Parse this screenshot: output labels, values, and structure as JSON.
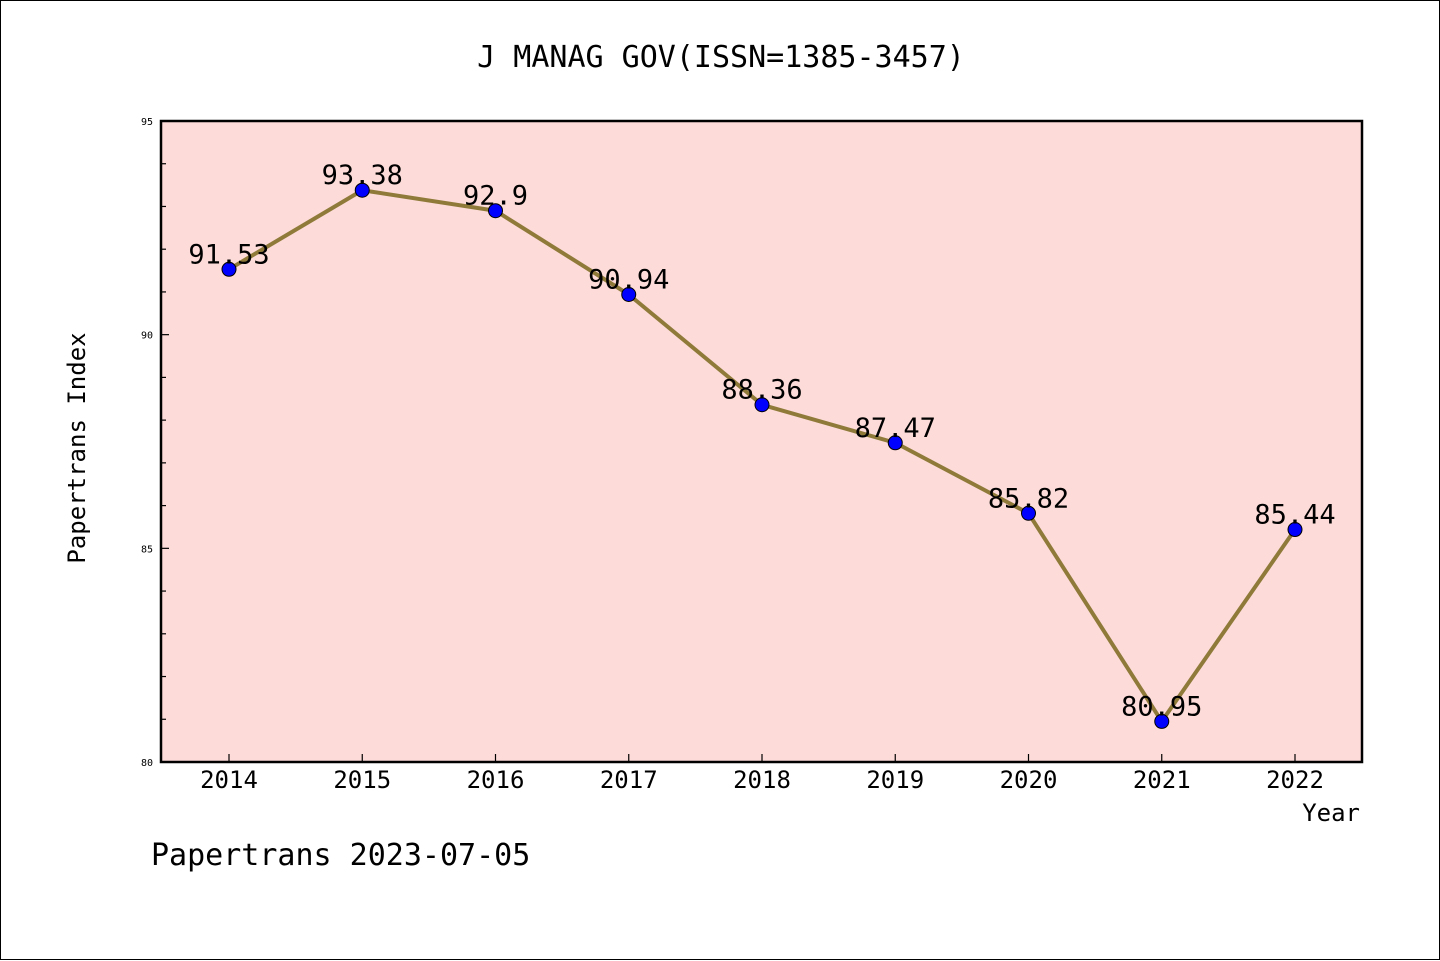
{
  "chart_data": {
    "type": "line",
    "title": "J MANAG GOV(ISSN=1385-3457)",
    "xlabel": "Year",
    "ylabel": "Papertrans Index",
    "x": [
      "2014",
      "2015",
      "2016",
      "2017",
      "2018",
      "2019",
      "2020",
      "2021",
      "2022"
    ],
    "series": [
      {
        "values": [
          91.53,
          93.38,
          92.9,
          90.94,
          88.36,
          87.47,
          85.82,
          80.95,
          85.44
        ],
        "data_labels": [
          "91.53",
          "93.38",
          "92.9",
          "90.94",
          "88.36",
          "87.47",
          "85.82",
          "80.95",
          "85.44"
        ]
      }
    ],
    "ylim": [
      80,
      95
    ],
    "y_ticks": [
      "80",
      "85",
      "90",
      "95"
    ],
    "grid": false,
    "colors": {
      "plot_background": "#fddbd8",
      "line": "#8f7a3a",
      "marker": "#0000ff",
      "marker_edge": "#000000"
    }
  },
  "footer": "Papertrans 2023-07-05"
}
